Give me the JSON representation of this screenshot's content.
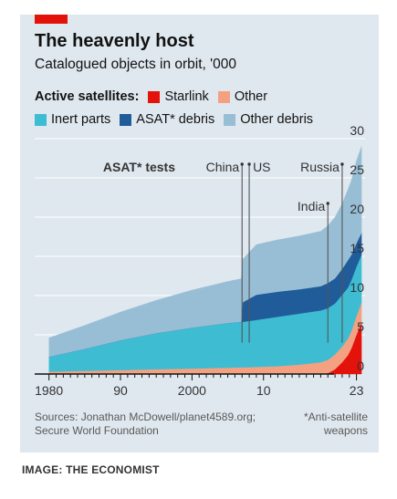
{
  "header": {
    "title": "The heavenly host",
    "subtitle": "Catalogued objects in orbit, '000"
  },
  "legend": {
    "heading": "Active satellites:",
    "items": [
      {
        "label": "Starlink",
        "color": "#e3120b"
      },
      {
        "label": "Other",
        "color": "#f4a182"
      },
      {
        "label": "Inert parts",
        "color": "#3ebcd2"
      },
      {
        "label": "ASAT* debris",
        "color": "#1f5c99"
      },
      {
        "label": "Other debris",
        "color": "#98bed6"
      }
    ]
  },
  "annotations": {
    "heading": "ASAT* tests",
    "events": [
      {
        "label": "China",
        "year": 2007
      },
      {
        "label": "US",
        "year": 2008
      },
      {
        "label": "India",
        "year": 2019
      },
      {
        "label": "Russia",
        "year": 2021
      }
    ]
  },
  "chart_data": {
    "type": "area",
    "stacked": true,
    "x_tick_labels": [
      "1980",
      "90",
      "2000",
      "10",
      "23"
    ],
    "x_tick_years": [
      1980,
      1990,
      2000,
      2010,
      2023
    ],
    "xlim": [
      1978,
      2024.2
    ],
    "ylim": [
      0,
      30
    ],
    "y_ticks": [
      0,
      5,
      10,
      15,
      20,
      25,
      30
    ],
    "y_axis_position": "right",
    "grid": true,
    "x": [
      1980,
      1985,
      1990,
      1995,
      2000,
      2005,
      2006.9,
      2007.1,
      2009,
      2012,
      2015,
      2018,
      2019,
      2020,
      2021,
      2021.8,
      2022.3,
      2023,
      2023.7
    ],
    "series": [
      {
        "name": "Starlink",
        "color": "#e3120b",
        "values": [
          0,
          0,
          0,
          0,
          0,
          0,
          0,
          0,
          0,
          0,
          0,
          0,
          0.1,
          0.6,
          1.5,
          2.4,
          3.3,
          5.0,
          6.6
        ]
      },
      {
        "name": "Other",
        "color": "#f4a182",
        "values": [
          0.3,
          0.4,
          0.5,
          0.6,
          0.7,
          0.8,
          0.85,
          0.85,
          0.9,
          1.0,
          1.2,
          1.5,
          1.7,
          1.9,
          2.0,
          2.1,
          2.2,
          2.4,
          2.5
        ]
      },
      {
        "name": "Inert parts",
        "color": "#3ebcd2",
        "values": [
          1.9,
          2.8,
          3.8,
          4.6,
          5.2,
          5.7,
          5.8,
          5.8,
          6.0,
          6.3,
          6.5,
          6.6,
          6.6,
          6.5,
          6.6,
          6.5,
          6.5,
          6.3,
          6.1
        ]
      },
      {
        "name": "ASAT* debris",
        "color": "#1f5c99",
        "values": [
          0,
          0,
          0,
          0,
          0,
          0,
          0,
          2.5,
          3.2,
          3.2,
          3.1,
          3.1,
          3.2,
          3.2,
          3.3,
          3.5,
          3.2,
          3.0,
          2.8
        ]
      },
      {
        "name": "Other debris",
        "color": "#98bed6",
        "values": [
          2.4,
          3.0,
          3.6,
          4.2,
          4.8,
          5.3,
          5.5,
          5.5,
          6.4,
          6.6,
          6.8,
          7.0,
          7.3,
          7.8,
          8.3,
          9.0,
          9.5,
          10.5,
          11.0
        ]
      }
    ]
  },
  "footer": {
    "source_line1": "Sources: Jonathan McDowell/planet4589.org;",
    "source_line2": "Secure World Foundation",
    "note_line1": "*Anti-satellite",
    "note_line2": "weapons",
    "credit": "IMAGE: THE ECONOMIST"
  }
}
